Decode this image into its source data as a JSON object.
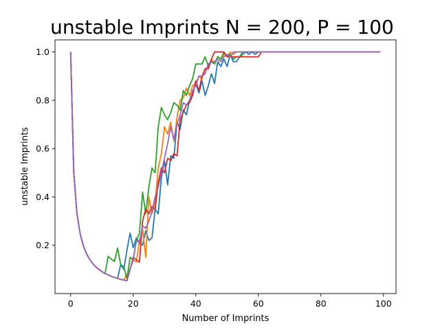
{
  "chart_data": {
    "type": "line",
    "title": "unstable Imprints N = 200, P = 100",
    "xlabel": "Number of Imprints",
    "ylabel": "unstable Imprints",
    "xlim": [
      -5,
      104
    ],
    "ylim": [
      0.0,
      1.05
    ],
    "xticks": [
      0,
      20,
      40,
      60,
      80,
      100
    ],
    "yticks": [
      0.2,
      0.4,
      0.6,
      0.8,
      1.0
    ],
    "grid": false,
    "legend": "none",
    "series": [
      {
        "color": "#1f77b4",
        "points": [
          [
            0,
            1.0
          ],
          [
            1,
            0.5
          ],
          [
            2,
            0.333
          ],
          [
            3,
            0.25
          ],
          [
            4,
            0.2
          ],
          [
            5,
            0.167
          ],
          [
            6,
            0.143
          ],
          [
            7,
            0.125
          ],
          [
            8,
            0.111
          ],
          [
            9,
            0.1
          ],
          [
            10,
            0.091
          ],
          [
            11,
            0.083
          ],
          [
            12,
            0.077
          ],
          [
            13,
            0.071
          ],
          [
            14,
            0.067
          ],
          [
            15,
            0.063
          ],
          [
            16,
            0.12
          ],
          [
            17,
            0.1
          ],
          [
            18,
            0.18
          ],
          [
            19,
            0.25
          ],
          [
            20,
            0.19
          ],
          [
            21,
            0.23
          ],
          [
            22,
            0.21
          ],
          [
            23,
            0.2
          ],
          [
            24,
            0.26
          ],
          [
            25,
            0.22
          ],
          [
            26,
            0.23
          ],
          [
            27,
            0.35
          ],
          [
            28,
            0.33
          ],
          [
            29,
            0.48
          ],
          [
            30,
            0.55
          ],
          [
            31,
            0.45
          ],
          [
            32,
            0.57
          ],
          [
            33,
            0.56
          ],
          [
            34,
            0.71
          ],
          [
            35,
            0.68
          ],
          [
            36,
            0.76
          ],
          [
            37,
            0.74
          ],
          [
            38,
            0.8
          ],
          [
            39,
            0.83
          ],
          [
            40,
            0.87
          ],
          [
            41,
            0.83
          ],
          [
            42,
            0.88
          ],
          [
            43,
            0.82
          ],
          [
            44,
            0.86
          ],
          [
            45,
            0.91
          ],
          [
            46,
            0.87
          ],
          [
            47,
            0.96
          ],
          [
            48,
            0.94
          ],
          [
            49,
            0.97
          ],
          [
            50,
            0.94
          ],
          [
            51,
            0.99
          ],
          [
            52,
            0.96
          ],
          [
            53,
            0.96
          ],
          [
            54,
            0.98
          ],
          [
            55,
            0.99
          ],
          [
            56,
            1.0
          ],
          [
            57,
            0.99
          ],
          [
            58,
            1.0
          ],
          [
            59,
            0.99
          ],
          [
            60,
            1.0
          ],
          [
            61,
            1.0
          ],
          [
            62,
            1.0
          ],
          [
            70,
            1.0
          ],
          [
            80,
            1.0
          ],
          [
            90,
            1.0
          ],
          [
            99,
            1.0
          ]
        ]
      },
      {
        "color": "#ff7f0e",
        "points": [
          [
            0,
            1.0
          ],
          [
            1,
            0.5
          ],
          [
            2,
            0.333
          ],
          [
            3,
            0.25
          ],
          [
            4,
            0.2
          ],
          [
            5,
            0.167
          ],
          [
            6,
            0.143
          ],
          [
            7,
            0.125
          ],
          [
            8,
            0.111
          ],
          [
            9,
            0.1
          ],
          [
            10,
            0.091
          ],
          [
            11,
            0.083
          ],
          [
            12,
            0.077
          ],
          [
            13,
            0.071
          ],
          [
            14,
            0.067
          ],
          [
            15,
            0.063
          ],
          [
            16,
            0.059
          ],
          [
            17,
            0.056
          ],
          [
            18,
            0.08
          ],
          [
            19,
            0.1
          ],
          [
            20,
            0.14
          ],
          [
            21,
            0.13
          ],
          [
            22,
            0.22
          ],
          [
            23,
            0.27
          ],
          [
            24,
            0.15
          ],
          [
            25,
            0.4
          ],
          [
            26,
            0.33
          ],
          [
            27,
            0.38
          ],
          [
            28,
            0.52
          ],
          [
            29,
            0.58
          ],
          [
            30,
            0.69
          ],
          [
            31,
            0.66
          ],
          [
            32,
            0.71
          ],
          [
            33,
            0.63
          ],
          [
            34,
            0.73
          ],
          [
            35,
            0.8
          ],
          [
            36,
            0.81
          ],
          [
            37,
            0.85
          ],
          [
            38,
            0.82
          ],
          [
            39,
            0.86
          ],
          [
            40,
            0.87
          ],
          [
            41,
            0.9
          ],
          [
            42,
            0.89
          ],
          [
            43,
            0.93
          ],
          [
            44,
            0.94
          ],
          [
            45,
            0.97
          ],
          [
            46,
            0.95
          ],
          [
            47,
            0.98
          ],
          [
            48,
            0.97
          ],
          [
            49,
            0.99
          ],
          [
            50,
            0.98
          ],
          [
            51,
            1.0
          ],
          [
            52,
            0.99
          ],
          [
            53,
            1.0
          ],
          [
            60,
            1.0
          ],
          [
            70,
            1.0
          ],
          [
            80,
            1.0
          ],
          [
            90,
            1.0
          ],
          [
            99,
            1.0
          ]
        ]
      },
      {
        "color": "#2ca02c",
        "points": [
          [
            0,
            1.0
          ],
          [
            1,
            0.5
          ],
          [
            2,
            0.333
          ],
          [
            3,
            0.25
          ],
          [
            4,
            0.2
          ],
          [
            5,
            0.167
          ],
          [
            6,
            0.143
          ],
          [
            7,
            0.125
          ],
          [
            8,
            0.111
          ],
          [
            9,
            0.1
          ],
          [
            10,
            0.091
          ],
          [
            11,
            0.083
          ],
          [
            12,
            0.154
          ],
          [
            13,
            0.143
          ],
          [
            14,
            0.133
          ],
          [
            15,
            0.188
          ],
          [
            16,
            0.12
          ],
          [
            17,
            0.11
          ],
          [
            18,
            0.06
          ],
          [
            19,
            0.15
          ],
          [
            20,
            0.14
          ],
          [
            21,
            0.22
          ],
          [
            22,
            0.25
          ],
          [
            23,
            0.42
          ],
          [
            24,
            0.33
          ],
          [
            25,
            0.44
          ],
          [
            26,
            0.52
          ],
          [
            27,
            0.5
          ],
          [
            28,
            0.69
          ],
          [
            29,
            0.77
          ],
          [
            30,
            0.74
          ],
          [
            31,
            0.72
          ],
          [
            32,
            0.75
          ],
          [
            33,
            0.79
          ],
          [
            34,
            0.78
          ],
          [
            35,
            0.76
          ],
          [
            36,
            0.84
          ],
          [
            37,
            0.82
          ],
          [
            38,
            0.86
          ],
          [
            39,
            0.89
          ],
          [
            40,
            0.95
          ],
          [
            41,
            0.95
          ],
          [
            42,
            0.95
          ],
          [
            43,
            0.98
          ],
          [
            44,
            0.94
          ],
          [
            45,
            0.96
          ],
          [
            46,
            0.95
          ],
          [
            47,
            0.98
          ],
          [
            48,
            0.97
          ],
          [
            49,
            1.0
          ],
          [
            50,
            0.98
          ],
          [
            51,
            0.99
          ],
          [
            52,
            0.97
          ],
          [
            53,
            0.98
          ],
          [
            54,
            0.98
          ],
          [
            55,
            1.0
          ],
          [
            60,
            1.0
          ],
          [
            70,
            1.0
          ],
          [
            80,
            1.0
          ],
          [
            90,
            1.0
          ],
          [
            99,
            1.0
          ]
        ]
      },
      {
        "color": "#d62728",
        "points": [
          [
            0,
            1.0
          ],
          [
            1,
            0.5
          ],
          [
            2,
            0.333
          ],
          [
            3,
            0.25
          ],
          [
            4,
            0.2
          ],
          [
            5,
            0.167
          ],
          [
            6,
            0.143
          ],
          [
            7,
            0.125
          ],
          [
            8,
            0.111
          ],
          [
            9,
            0.1
          ],
          [
            10,
            0.091
          ],
          [
            11,
            0.083
          ],
          [
            12,
            0.077
          ],
          [
            13,
            0.071
          ],
          [
            14,
            0.067
          ],
          [
            15,
            0.063
          ],
          [
            16,
            0.059
          ],
          [
            17,
            0.056
          ],
          [
            18,
            0.053
          ],
          [
            19,
            0.1
          ],
          [
            20,
            0.15
          ],
          [
            21,
            0.14
          ],
          [
            22,
            0.13
          ],
          [
            23,
            0.3
          ],
          [
            24,
            0.35
          ],
          [
            25,
            0.33
          ],
          [
            26,
            0.36
          ],
          [
            27,
            0.35
          ],
          [
            28,
            0.46
          ],
          [
            29,
            0.52
          ],
          [
            30,
            0.5
          ],
          [
            31,
            0.56
          ],
          [
            32,
            0.55
          ],
          [
            33,
            0.58
          ],
          [
            34,
            0.57
          ],
          [
            35,
            0.72
          ],
          [
            36,
            0.75
          ],
          [
            37,
            0.78
          ],
          [
            38,
            0.79
          ],
          [
            39,
            0.82
          ],
          [
            40,
            0.88
          ],
          [
            41,
            0.84
          ],
          [
            42,
            0.9
          ],
          [
            43,
            0.93
          ],
          [
            44,
            0.93
          ],
          [
            45,
            0.97
          ],
          [
            46,
            1.0
          ],
          [
            47,
            1.0
          ],
          [
            48,
            1.0
          ],
          [
            49,
            1.0
          ],
          [
            50,
            0.98
          ],
          [
            55,
            0.98
          ],
          [
            60,
            0.98
          ],
          [
            61,
            1.0
          ],
          [
            70,
            1.0
          ],
          [
            80,
            1.0
          ],
          [
            90,
            1.0
          ],
          [
            99,
            1.0
          ]
        ]
      },
      {
        "color": "#9467bd",
        "points": [
          [
            0,
            1.0
          ],
          [
            1,
            0.5
          ],
          [
            2,
            0.333
          ],
          [
            3,
            0.25
          ],
          [
            4,
            0.2
          ],
          [
            5,
            0.167
          ],
          [
            6,
            0.143
          ],
          [
            7,
            0.125
          ],
          [
            8,
            0.111
          ],
          [
            9,
            0.1
          ],
          [
            10,
            0.091
          ],
          [
            11,
            0.083
          ],
          [
            12,
            0.077
          ],
          [
            13,
            0.071
          ],
          [
            14,
            0.067
          ],
          [
            15,
            0.063
          ],
          [
            16,
            0.059
          ],
          [
            17,
            0.056
          ],
          [
            18,
            0.053
          ],
          [
            19,
            0.1
          ],
          [
            20,
            0.14
          ],
          [
            21,
            0.22
          ],
          [
            22,
            0.21
          ],
          [
            23,
            0.28
          ],
          [
            24,
            0.27
          ],
          [
            25,
            0.3
          ],
          [
            26,
            0.34
          ],
          [
            27,
            0.4
          ],
          [
            28,
            0.44
          ],
          [
            29,
            0.5
          ],
          [
            30,
            0.56
          ],
          [
            31,
            0.62
          ],
          [
            32,
            0.69
          ],
          [
            33,
            0.64
          ],
          [
            34,
            0.7
          ],
          [
            35,
            0.74
          ],
          [
            36,
            0.79
          ],
          [
            37,
            0.78
          ],
          [
            38,
            0.8
          ],
          [
            39,
            0.84
          ],
          [
            40,
            0.86
          ],
          [
            41,
            0.9
          ],
          [
            42,
            0.9
          ],
          [
            43,
            0.91
          ],
          [
            44,
            0.95
          ],
          [
            45,
            0.96
          ],
          [
            46,
            0.96
          ],
          [
            47,
            0.97
          ],
          [
            48,
            0.96
          ],
          [
            49,
            0.98
          ],
          [
            50,
            0.99
          ],
          [
            51,
            0.98
          ],
          [
            52,
            1.0
          ],
          [
            53,
            1.0
          ],
          [
            60,
            1.0
          ],
          [
            70,
            1.0
          ],
          [
            80,
            1.0
          ],
          [
            90,
            1.0
          ],
          [
            99,
            1.0
          ]
        ]
      }
    ]
  }
}
